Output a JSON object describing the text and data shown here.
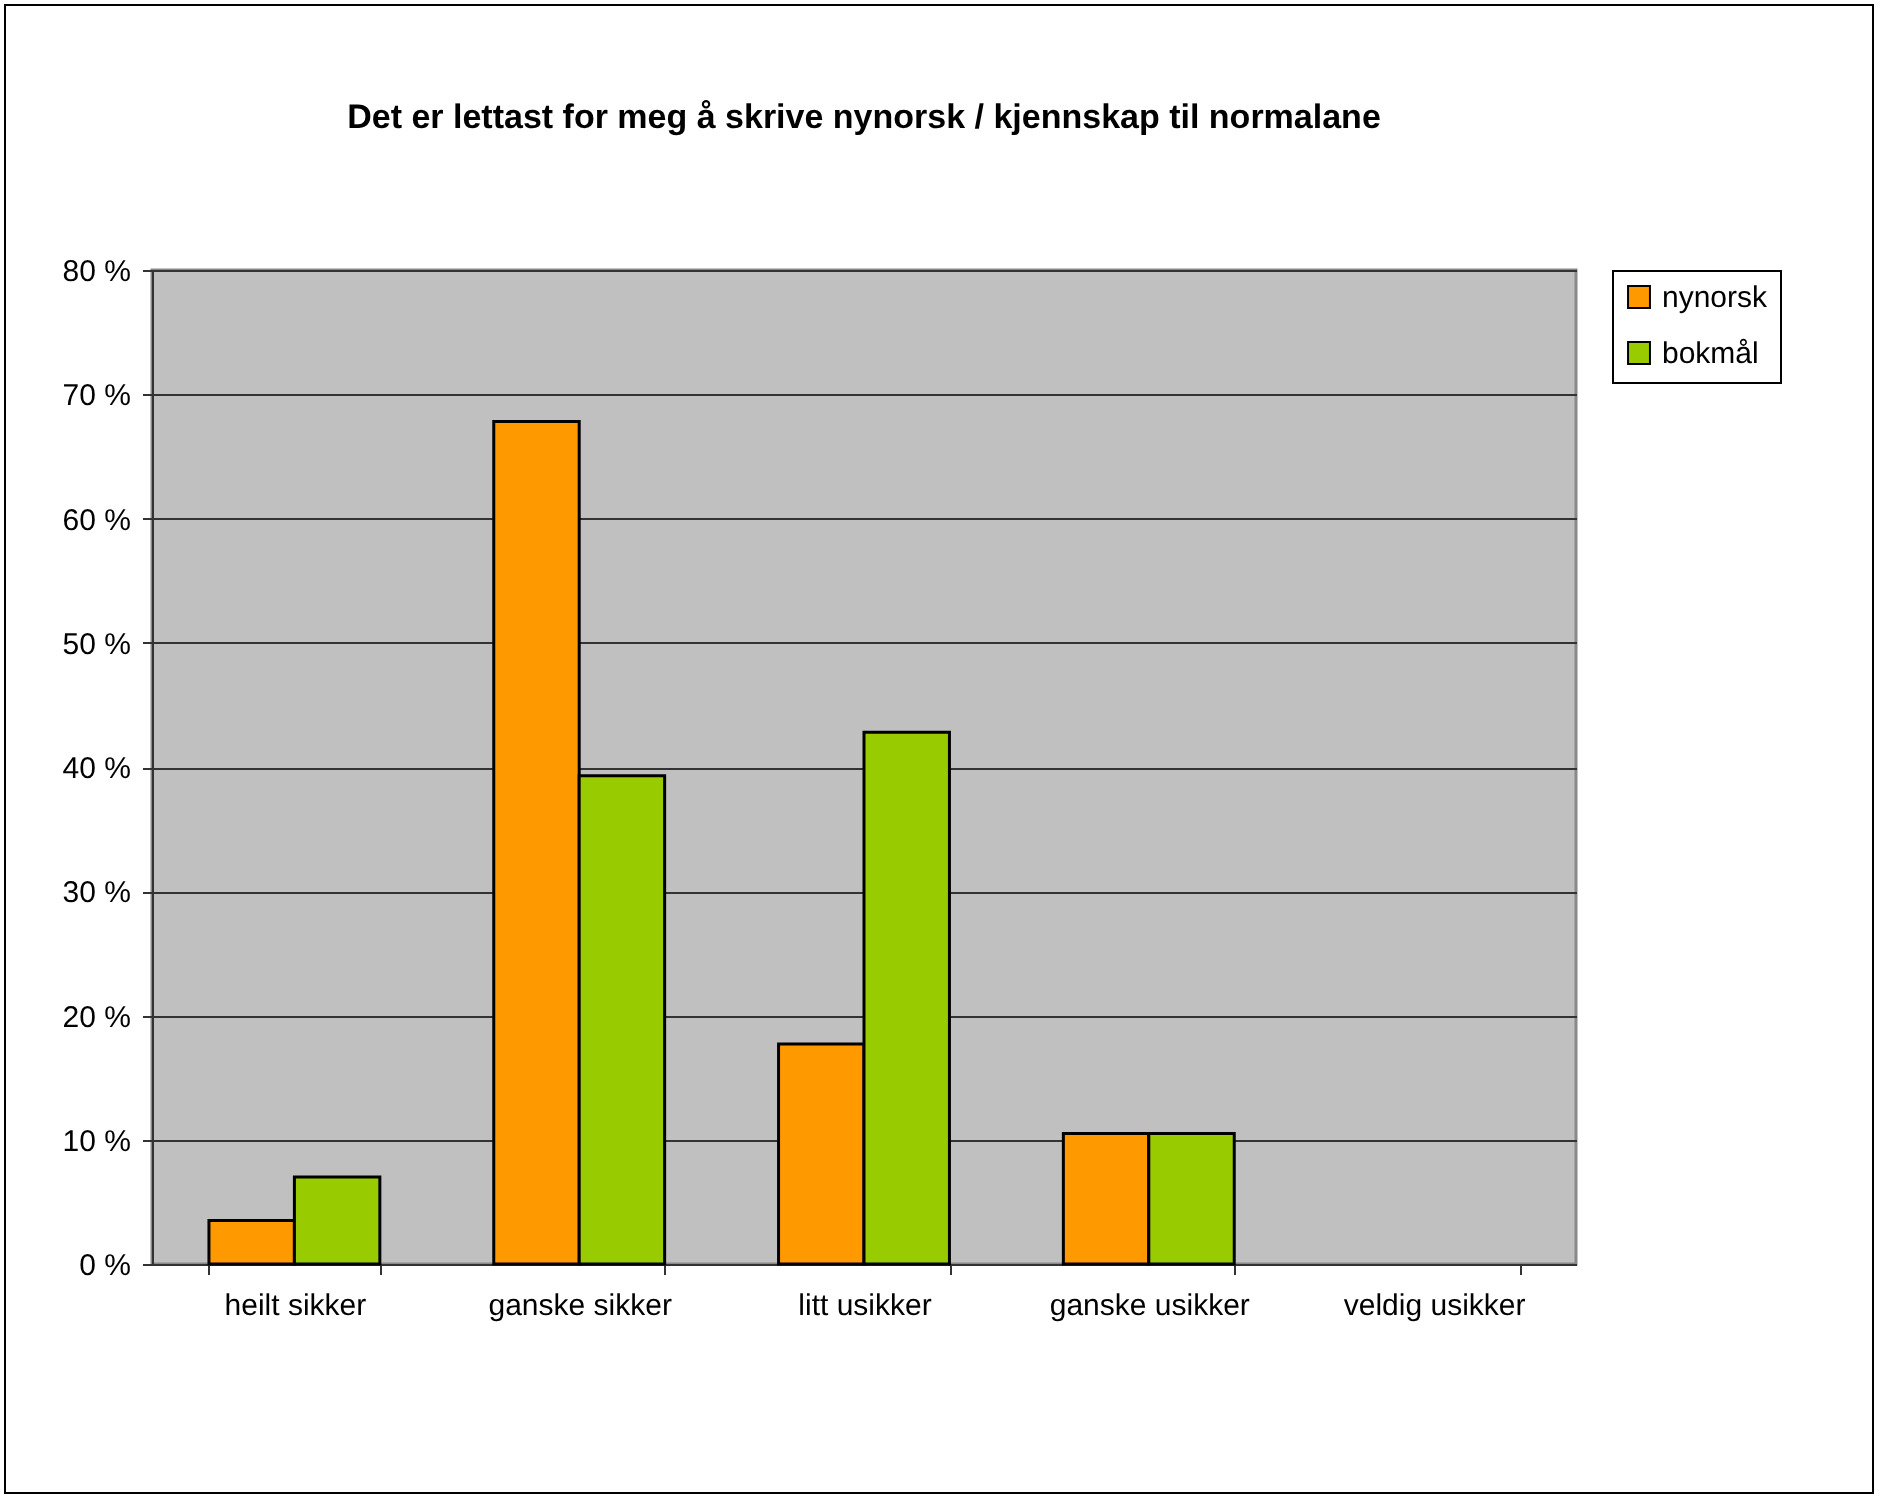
{
  "chart_data": {
    "type": "bar",
    "title": "Det er lettast for meg å skrive nynorsk / kjennskap til normalane",
    "categories": [
      "heilt sikker",
      "ganske sikker",
      "litt usikker",
      "ganske usikker",
      "veldig usikker"
    ],
    "series": [
      {
        "name": "nynorsk",
        "color": "#ff9900",
        "values": [
          3.5,
          67.8,
          17.7,
          10.5,
          0
        ]
      },
      {
        "name": "bokmål",
        "color": "#99cc00",
        "values": [
          7.0,
          39.3,
          42.8,
          10.5,
          0
        ]
      }
    ],
    "ylim": [
      0,
      80
    ],
    "yticks": [
      {
        "value": 0,
        "label": "0 %"
      },
      {
        "value": 10,
        "label": "10 %"
      },
      {
        "value": 20,
        "label": "20 %"
      },
      {
        "value": 30,
        "label": "30 %"
      },
      {
        "value": 40,
        "label": "40 %"
      },
      {
        "value": 50,
        "label": "50 %"
      },
      {
        "value": 60,
        "label": "60 %"
      },
      {
        "value": 70,
        "label": "70 %"
      },
      {
        "value": 80,
        "label": "80 %"
      }
    ],
    "grid": "y",
    "legend": "right"
  }
}
